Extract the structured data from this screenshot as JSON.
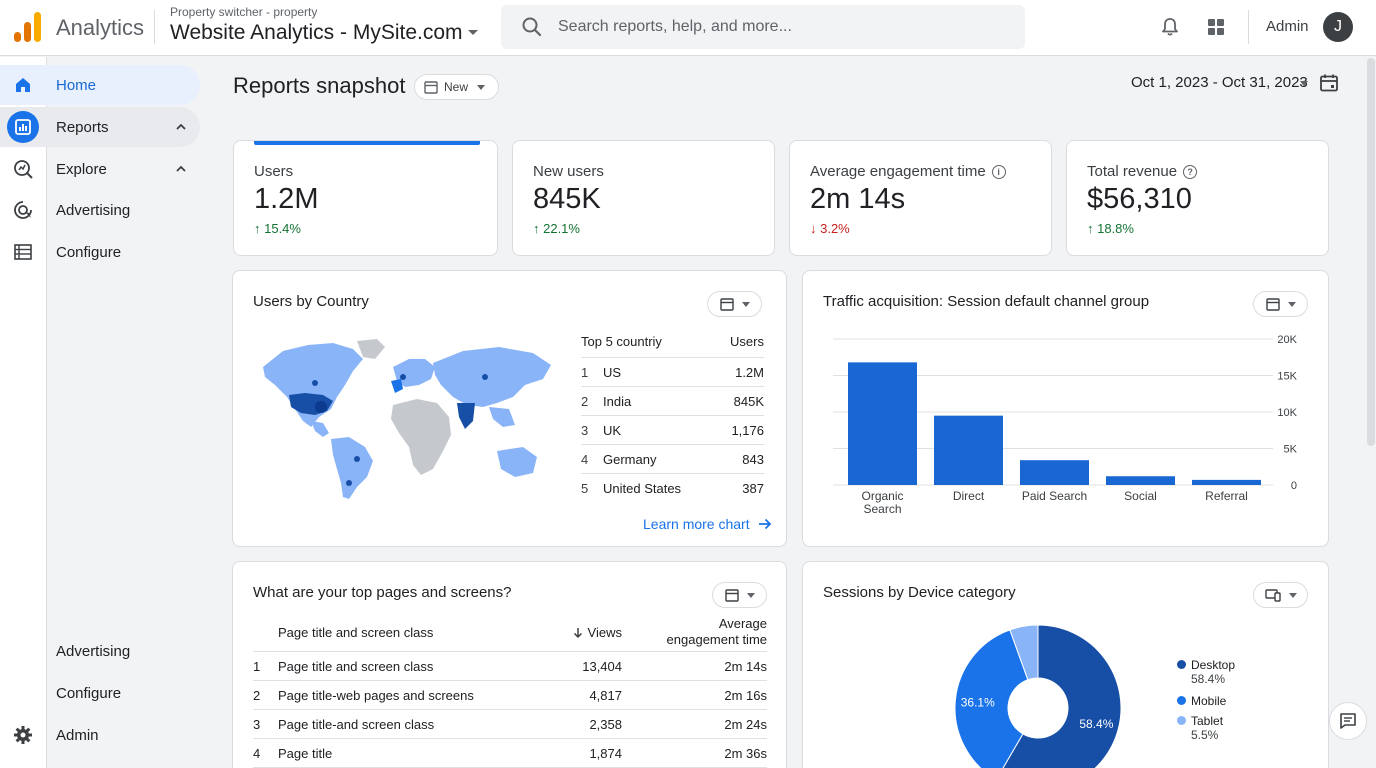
{
  "header": {
    "app_name": "Analytics",
    "property_switcher_label": "Property switcher - property",
    "property_name": "Website Analytics - MySite.com",
    "search_placeholder": "Search reports, help, and more...",
    "user_label": "Admin",
    "avatar_initial": "J"
  },
  "sidebar": {
    "items": [
      {
        "label": "Home",
        "icon": "home-icon"
      },
      {
        "label": "Reports",
        "icon": "reports-icon"
      },
      {
        "label": "Explore",
        "icon": "explore-icon"
      },
      {
        "label": "Advertising",
        "icon": "advertising-icon"
      },
      {
        "label": "Configure",
        "icon": "configure-icon"
      }
    ],
    "bottom_items": [
      {
        "label": "Advertising"
      },
      {
        "label": "Configure"
      },
      {
        "label": "Admin",
        "icon": "gear-icon"
      }
    ]
  },
  "page": {
    "title": "Reports snapshot",
    "chip_label": "New",
    "date_range": "Oct 1, 2023 - Oct 31, 2023"
  },
  "kpis": [
    {
      "label": "Users",
      "value": "1.2M",
      "delta": "↑ 15.4%",
      "direction": "up"
    },
    {
      "label": "New users",
      "value": "845K",
      "delta": "↑ 22.1%",
      "direction": "up"
    },
    {
      "label": "Average engagement time",
      "value": "2m 14s",
      "delta": "↓ 3.2%",
      "direction": "down"
    },
    {
      "label": "Total revenue",
      "value": "$56,310",
      "delta": "↑ 18.8%",
      "direction": "up"
    }
  ],
  "country_card": {
    "title": "Users by Country",
    "col_country": "Top 5 countriy",
    "col_users": "Users",
    "rows": [
      {
        "rank": "1",
        "country": "US",
        "users": "1.2M"
      },
      {
        "rank": "2",
        "country": "India",
        "users": "845K"
      },
      {
        "rank": "3",
        "country": "UK",
        "users": "1,176"
      },
      {
        "rank": "4",
        "country": "Germany",
        "users": "843"
      },
      {
        "rank": "5",
        "country": "United States",
        "users": "387"
      }
    ],
    "learn_more": "Learn more chart"
  },
  "traffic_card": {
    "title": "Traffic acquisition: Session default channel group"
  },
  "chart_data": {
    "type": "bar",
    "categories": [
      "Organic Search",
      "Direct",
      "Paid Search",
      "Social",
      "Referral"
    ],
    "values": [
      16800,
      9500,
      3400,
      1200,
      700
    ],
    "ylim": [
      0,
      20000
    ],
    "yticks": [
      "20K",
      "15K",
      "10K",
      "5K",
      "0"
    ],
    "color": "#1967d2"
  },
  "pages_card": {
    "title": "What are your top pages and screens?",
    "col_title": "Page title and screen class",
    "col_views": "Views",
    "col_engagement": "Average engagement time",
    "rows": [
      {
        "rank": "1",
        "title": "Page title and screen class",
        "views": "13,404",
        "engagement": "2m 14s"
      },
      {
        "rank": "2",
        "title": "Page title-web pages and screens",
        "views": "4,817",
        "engagement": "2m 16s"
      },
      {
        "rank": "3",
        "title": "Page title-and screen class",
        "views": "2,358",
        "engagement": "2m 24s"
      },
      {
        "rank": "4",
        "title": "Page title",
        "views": "1,874",
        "engagement": "2m 36s"
      }
    ]
  },
  "device_card": {
    "title": "Sessions by Device category",
    "slices": [
      {
        "label": "Desktop",
        "pct": "58.4%",
        "value": 58.4,
        "color": "#174ea6"
      },
      {
        "label": "Mobile",
        "pct": "36.1%",
        "value": 36.1,
        "color": "#1a73e8"
      },
      {
        "label": "Tablet",
        "pct": "5.5%",
        "value": 5.5,
        "color": "#8ab4f8"
      }
    ]
  },
  "colors": {
    "accent": "#1a73e8",
    "positive": "#137333",
    "negative": "#c5221f"
  }
}
